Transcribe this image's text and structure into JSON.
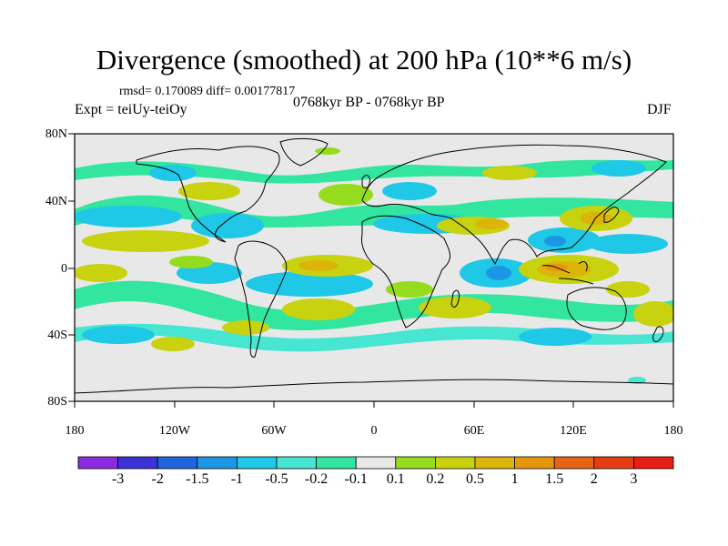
{
  "title": "Divergence (smoothed) at 200 hPa (10**6 m/s)",
  "stats": "rmsd= 0.170089 diff= 0.00177817",
  "expt": "Expt = teiUy-teiOy",
  "period": "0768kyr BP - 0768kyr BP",
  "season": "DJF",
  "y_labels": [
    "80N",
    "40N",
    "0",
    "40S",
    "80S"
  ],
  "x_labels": [
    "180",
    "120W",
    "60W",
    "0",
    "60E",
    "120E",
    "180"
  ],
  "colorbar": {
    "colors": [
      "#8a2be2",
      "#3c32d6",
      "#1e64dc",
      "#1e96e6",
      "#1ec8e6",
      "#46e6d2",
      "#32e6a0",
      "#e8e8e8",
      "#96dc1e",
      "#c8d20f",
      "#dcb40a",
      "#e6960a",
      "#e66414",
      "#e63c14",
      "#e61e14"
    ],
    "labels": [
      "-3",
      "-2",
      "-1.5",
      "-1",
      "-0.5",
      "-0.2",
      "-0.1",
      "0.1",
      "0.2",
      "0.5",
      "1",
      "1.5",
      "2",
      "3"
    ]
  }
}
